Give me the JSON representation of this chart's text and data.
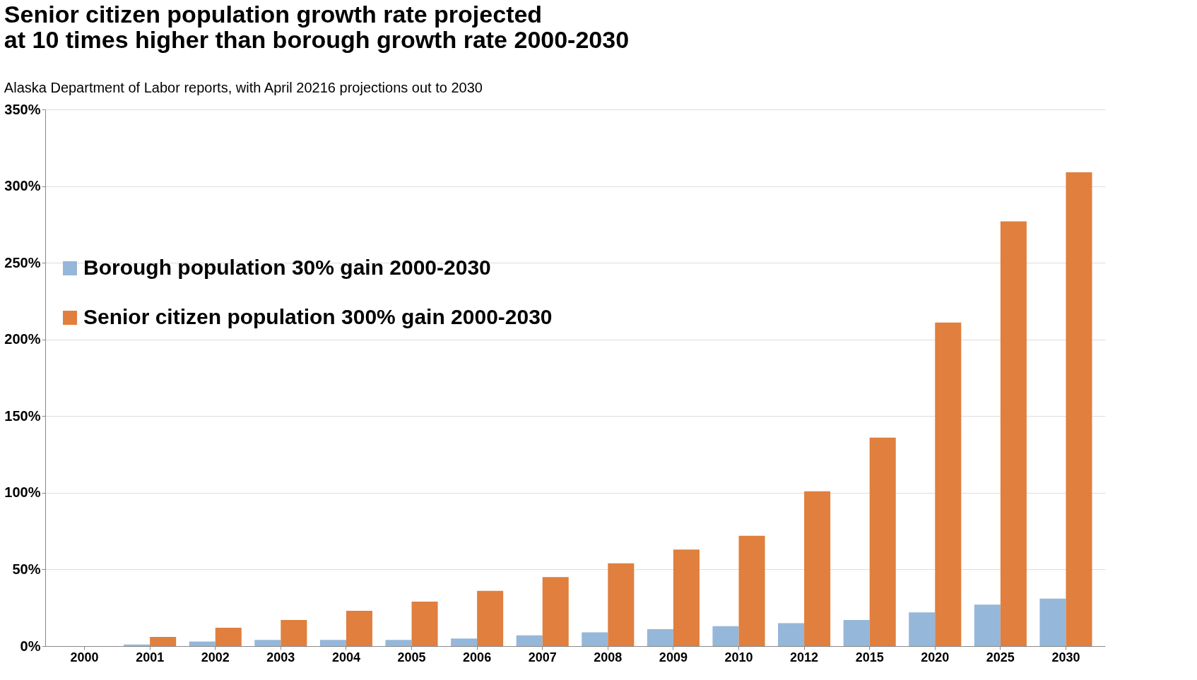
{
  "chart_data": {
    "type": "bar",
    "title": [
      "Senior citizen population growth rate projected",
      "at 10 times higher than borough growth rate 2000-2030"
    ],
    "subtitle": "Alaska Department of Labor reports, with April 20216 projections out to 2030",
    "categories": [
      "2000",
      "2001",
      "2002",
      "2003",
      "2004",
      "2005",
      "2006",
      "2007",
      "2008",
      "2009",
      "2010",
      "2012",
      "2015",
      "2020",
      "2025",
      "2030"
    ],
    "series": [
      {
        "name": "Borough population 30% gain 2000-2030",
        "color": "#95b7d9",
        "values": [
          0,
          1,
          3,
          4,
          4,
          4,
          5,
          7,
          9,
          11,
          13,
          15,
          17,
          22,
          27,
          31
        ]
      },
      {
        "name": "Senior citizen population 300% gain 2000-2030",
        "color": "#e07f3e",
        "values": [
          0,
          6,
          12,
          17,
          23,
          29,
          36,
          45,
          54,
          63,
          72,
          101,
          136,
          211,
          277,
          309
        ]
      }
    ],
    "ylim": [
      0,
      350
    ],
    "yticks": [
      {
        "value": 0,
        "label": "0%"
      },
      {
        "value": 50,
        "label": "50%"
      },
      {
        "value": 100,
        "label": "100%"
      },
      {
        "value": 150,
        "label": "150%"
      },
      {
        "value": 200,
        "label": "200%"
      },
      {
        "value": 250,
        "label": "250%"
      },
      {
        "value": 300,
        "label": "300%"
      },
      {
        "value": 350,
        "label": "350%"
      }
    ],
    "grid": "y",
    "legend": "left"
  }
}
